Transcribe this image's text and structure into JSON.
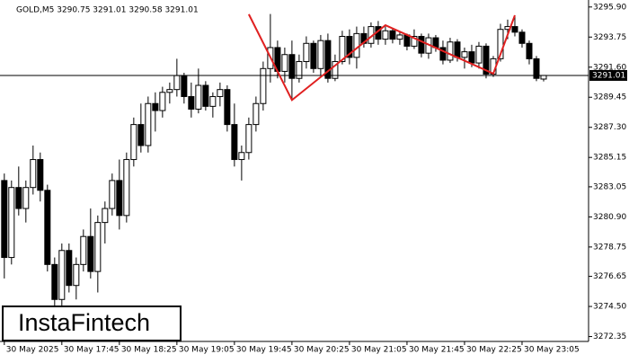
{
  "chart_data": {
    "type": "candlestick",
    "header": "GOLD,M5  3290.75 3291.01 3290.58 3291.01",
    "brand": "InstaFintech",
    "xlim": [
      -0.6,
      81.25
    ],
    "xticks": [
      {
        "value": 0,
        "label": "30 May 2025"
      },
      {
        "value": 8,
        "label": "30 May 17:45"
      },
      {
        "value": 16,
        "label": "30 May 18:25"
      },
      {
        "value": 24,
        "label": "30 May 19:05"
      },
      {
        "value": 32,
        "label": "30 May 19:45"
      },
      {
        "value": 40,
        "label": "30 May 20:25"
      },
      {
        "value": 48,
        "label": "30 May 21:05"
      },
      {
        "value": 56,
        "label": "30 May 21:45"
      },
      {
        "value": 64,
        "label": "30 May 22:25"
      },
      {
        "value": 72,
        "label": "30 May 23:05"
      }
    ],
    "ylim": [
      3272.0,
      3296.4
    ],
    "yticks": [
      {
        "value": 3295.9,
        "label": "3295.90"
      },
      3293.75,
      {
        "value": 3291.6,
        "label": "3291.60"
      },
      3289.45,
      {
        "value": 3287.3,
        "label": "3287.30"
      },
      {
        "value": 3285.15,
        "label": "3285.15"
      },
      3283.05,
      {
        "value": 3280.9,
        "label": "3280.90"
      },
      3278.75,
      3276.65,
      {
        "value": 3274.5,
        "label": "3274.50"
      },
      {
        "value": 3272.35,
        "label": "3272.35"
      }
    ],
    "current_price": 3291.01,
    "up_color": "#ffffff",
    "down_color": "#000000",
    "pattern_color": "#e02020",
    "pattern": {
      "x": [
        34,
        40,
        53,
        68,
        71
      ],
      "y": [
        3295.38,
        3289.25,
        3294.6,
        3291.14,
        3295.31
      ]
    },
    "open": [
      3283.5,
      3278,
      3283,
      3281.5,
      3283,
      3285,
      3282.8,
      3277.5,
      3275,
      3278.5,
      3276,
      3277.5,
      3279.5,
      3277,
      3280.5,
      3281.5,
      3283.5,
      3281,
      3285,
      3287.5,
      3286,
      3289,
      3288.5,
      3289.8,
      3290,
      3291,
      3289.5,
      3288.6,
      3290.3,
      3288.8,
      3289.5,
      3290,
      3287.5,
      3285,
      3285.5,
      3287.5,
      3289,
      3291.5,
      3293,
      3291.3,
      3292.5,
      3290.8,
      3292,
      3293.3,
      3291.5,
      3293.5,
      3290.8,
      3292,
      3293.8,
      3292.3,
      3294,
      3293.3,
      3294.5,
      3293.6,
      3294.2,
      3293.6,
      3293.9,
      3293.1,
      3293.8,
      3292.6,
      3293.7,
      3293,
      3292.1,
      3293.4,
      3292.3,
      3292.7,
      3291.9,
      3293.1,
      3291.1,
      3292.2,
      3294.3,
      3294.5,
      3294.1,
      3293.3,
      3292.2,
      3290.75
    ],
    "high": [
      3284,
      3283.5,
      3284.5,
      3283.5,
      3286,
      3285.5,
      3283.2,
      3278,
      3279,
      3279,
      3278,
      3280,
      3281.5,
      3281,
      3282,
      3284,
      3285,
      3285.5,
      3288,
      3289,
      3289.5,
      3289.8,
      3290.2,
      3290.5,
      3292.2,
      3291.2,
      3290.5,
      3291.5,
      3290.6,
      3289.8,
      3290.5,
      3290.3,
      3289,
      3286,
      3288,
      3289.5,
      3292,
      3295.4,
      3293.5,
      3293,
      3293.5,
      3292.5,
      3293.8,
      3293.5,
      3293.9,
      3294,
      3292.5,
      3294.2,
      3294.3,
      3294.5,
      3294.5,
      3294.8,
      3294.9,
      3294.5,
      3294.4,
      3294.1,
      3294,
      3294.3,
      3294,
      3294,
      3293.9,
      3293.5,
      3293.7,
      3293.6,
      3293,
      3293.2,
      3293.4,
      3293.3,
      3292.4,
      3294.7,
      3295,
      3295.3,
      3294.3,
      3293.5,
      3292.4,
      3291.01
    ],
    "low": [
      3276.5,
      3277.5,
      3281,
      3280.5,
      3282.5,
      3282,
      3277,
      3274.5,
      3274.5,
      3275.5,
      3275,
      3277,
      3276.5,
      3275.5,
      3279,
      3281,
      3280,
      3280.5,
      3284.5,
      3285.5,
      3285.5,
      3287,
      3288,
      3289,
      3289.5,
      3289,
      3288,
      3288.3,
      3288.5,
      3288,
      3288.8,
      3287,
      3284.5,
      3283.5,
      3285,
      3287,
      3288.5,
      3290.5,
      3290.8,
      3290.5,
      3289.2,
      3290.5,
      3291.5,
      3291.2,
      3291,
      3290.5,
      3290.6,
      3291.8,
      3291.8,
      3291.5,
      3293,
      3293,
      3293.2,
      3293.2,
      3293.3,
      3293.2,
      3292.8,
      3292.9,
      3292.3,
      3292.2,
      3292.7,
      3291.8,
      3291.9,
      3292,
      3291.5,
      3291.6,
      3291.5,
      3290.8,
      3290.9,
      3292,
      3293.6,
      3293.8,
      3293,
      3291.8,
      3290.6,
      3290.58
    ],
    "close": [
      3278,
      3283,
      3281.5,
      3283,
      3285,
      3282.8,
      3277.5,
      3275,
      3278.5,
      3276,
      3277.5,
      3279.5,
      3277,
      3280.5,
      3281.5,
      3283.5,
      3281,
      3285,
      3287.5,
      3286,
      3289,
      3288.5,
      3289.8,
      3290,
      3291,
      3289.5,
      3288.6,
      3290.3,
      3288.8,
      3289.5,
      3290,
      3287.5,
      3285,
      3285.5,
      3287.5,
      3289,
      3291.5,
      3293,
      3291.3,
      3292.5,
      3290.8,
      3292,
      3293.3,
      3291.5,
      3293.5,
      3290.8,
      3292,
      3293.8,
      3292.3,
      3294,
      3293.3,
      3294.5,
      3293.6,
      3294.2,
      3293.6,
      3293.9,
      3293.1,
      3293.8,
      3292.6,
      3293.7,
      3293,
      3292.1,
      3293.4,
      3292.3,
      3292.7,
      3291.9,
      3293.1,
      3291.1,
      3292.2,
      3294.3,
      3294.5,
      3294.1,
      3293.3,
      3292.2,
      3290.8,
      3291.01
    ]
  }
}
